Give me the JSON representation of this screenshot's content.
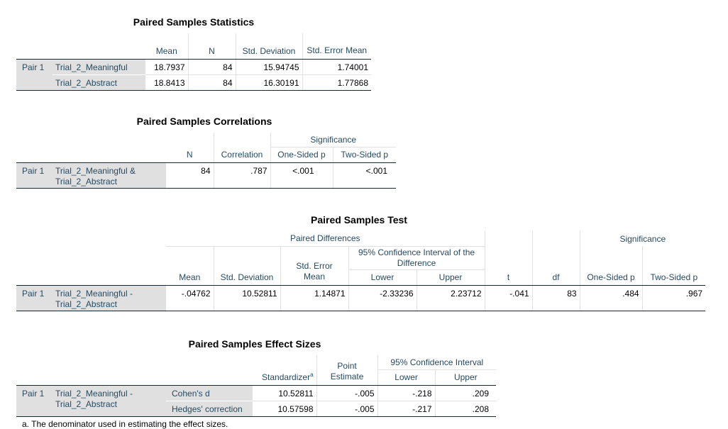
{
  "t1": {
    "title": "Paired Samples Statistics",
    "headers": {
      "mean": "Mean",
      "n": "N",
      "sd": "Std. Deviation",
      "se": "Std. Error Mean"
    },
    "pair": "Pair 1",
    "rows": [
      {
        "label": "Trial_2_Meaningful",
        "mean": "18.7937",
        "n": "84",
        "sd": "15.94745",
        "se": "1.74001"
      },
      {
        "label": "Trial_2_Abstract",
        "mean": "18.8413",
        "n": "84",
        "sd": "16.30191",
        "se": "1.77868"
      }
    ]
  },
  "t2": {
    "title": "Paired Samples Correlations",
    "headers": {
      "n": "N",
      "corr": "Correlation",
      "sig": "Significance",
      "one": "One-Sided p",
      "two": "Two-Sided p"
    },
    "pair": "Pair 1",
    "label1": "Trial_2_Meaningful &",
    "label2": "Trial_2_Abstract",
    "n": "84",
    "corr": ".787",
    "one": "<.001",
    "two": "<.001"
  },
  "t3": {
    "title": "Paired Samples Test",
    "headers": {
      "pd": "Paired Differences",
      "ci1": "95% Confidence Interval of the",
      "ci2": "Difference",
      "mean": "Mean",
      "sd": "Std. Deviation",
      "se1": "Std. Error",
      "se2": "Mean",
      "lower": "Lower",
      "upper": "Upper",
      "t": "t",
      "df": "df",
      "sig": "Significance",
      "one": "One-Sided p",
      "two": "Two-Sided p"
    },
    "pair": "Pair 1",
    "label1": "Trial_2_Meaningful -",
    "label2": "Trial_2_Abstract",
    "mean": "-.04762",
    "sd": "10.52811",
    "se": "1.14871",
    "lower": "-2.33236",
    "upper": "2.23712",
    "t": "-.041",
    "df": "83",
    "one": ".484",
    "two": ".967"
  },
  "t4": {
    "title": "Paired Samples Effect Sizes",
    "headers": {
      "std": "Standardizer",
      "std_sup": "a",
      "pe1": "Point",
      "pe2": "Estimate",
      "ci": "95% Confidence Interval",
      "lower": "Lower",
      "upper": "Upper"
    },
    "pair": "Pair 1",
    "label1": "Trial_2_Meaningful -",
    "label2": "Trial_2_Abstract",
    "rows": [
      {
        "label": "Cohen's d",
        "std": "10.52811",
        "pe": "-.005",
        "lower": "-.218",
        "upper": ".209"
      },
      {
        "label": "Hedges' correction",
        "std": "10.57598",
        "pe": "-.005",
        "lower": "-.217",
        "upper": ".208"
      }
    ],
    "footnote": "a. The denominator used in estimating the effect sizes."
  }
}
